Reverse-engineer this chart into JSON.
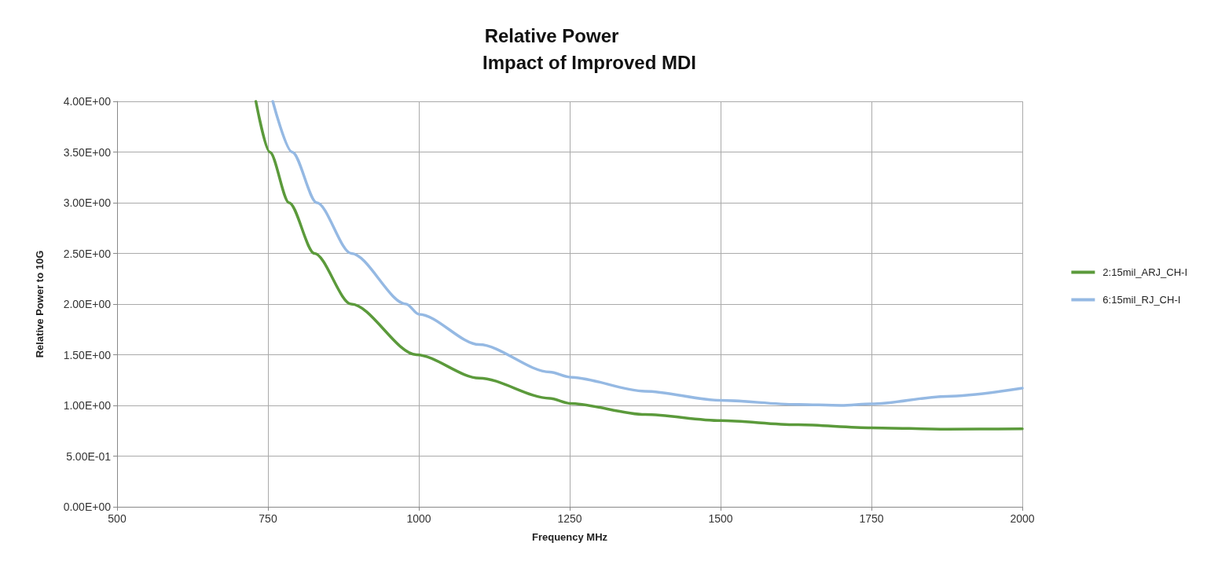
{
  "chart_data": {
    "type": "line",
    "title": "Relative Power",
    "subtitle": "Impact of Improved MDI",
    "xlabel": "Frequency MHz",
    "ylabel": "Relative Power to 10G",
    "xlim": [
      500,
      2000
    ],
    "xticks": [
      500,
      750,
      1000,
      1250,
      1500,
      1750,
      2000
    ],
    "ylim": [
      0,
      4
    ],
    "yticks": [
      {
        "value": 0,
        "label": "0.00E+00"
      },
      {
        "value": 0.5,
        "label": "5.00E-01"
      },
      {
        "value": 1,
        "label": "1.00E+00"
      },
      {
        "value": 1.5,
        "label": "1.50E+00"
      },
      {
        "value": 2,
        "label": "2.00E+00"
      },
      {
        "value": 2.5,
        "label": "2.50E+00"
      },
      {
        "value": 3,
        "label": "3.00E+00"
      },
      {
        "value": 3.5,
        "label": "3.50E+00"
      },
      {
        "value": 4,
        "label": "4.00E+00"
      }
    ],
    "grid": true,
    "legend": "right",
    "marker": "none",
    "line_style": "solid",
    "series": [
      {
        "name": "2:15mil_ARJ_CH-I",
        "color": "#5b9a3b",
        "x": [
          730,
          753,
          785,
          827,
          888,
          996,
          1100,
          1217,
          1250,
          1375,
          1500,
          1625,
          1750,
          1875,
          2000
        ],
        "values": [
          4.0,
          3.5,
          3.0,
          2.5,
          2.0,
          1.5,
          1.27,
          1.07,
          1.02,
          0.91,
          0.85,
          0.81,
          0.78,
          0.765,
          0.77
        ]
      },
      {
        "name": "6:15mil_RJ_CH-I",
        "color": "#95b9e3",
        "x": [
          758,
          790,
          831,
          888,
          979,
          1000,
          1100,
          1217,
          1250,
          1375,
          1500,
          1625,
          1700,
          1750,
          1875,
          2000
        ],
        "values": [
          4.0,
          3.5,
          3.0,
          2.5,
          2.0,
          1.9,
          1.6,
          1.33,
          1.28,
          1.14,
          1.05,
          1.01,
          1.0,
          1.015,
          1.09,
          1.17
        ]
      }
    ]
  }
}
